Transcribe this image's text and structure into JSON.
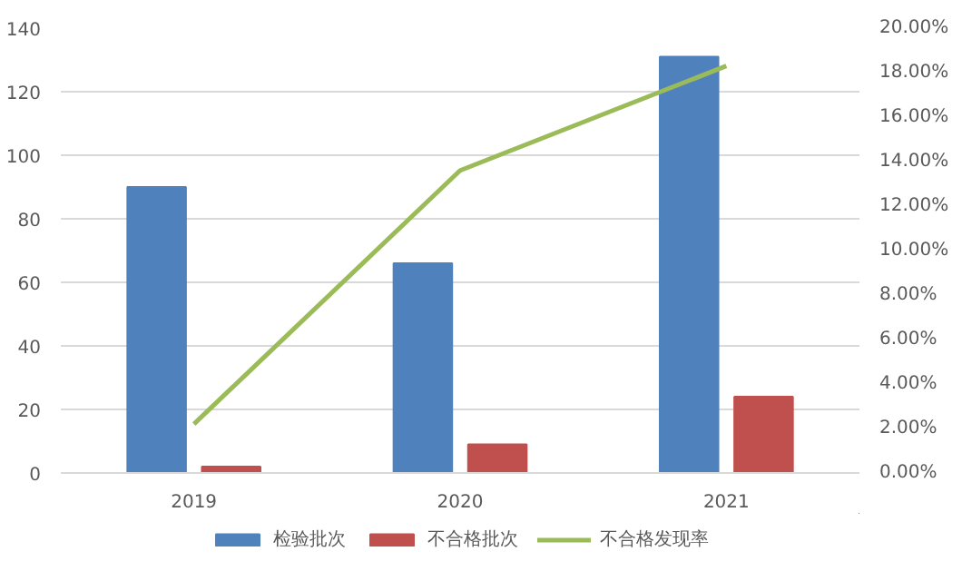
{
  "chart_data": {
    "type": "bar",
    "categories": [
      "2019",
      "2020",
      "2021"
    ],
    "series": [
      {
        "name": "检验批次",
        "color": "#4f81bd",
        "values": [
          90,
          66,
          131
        ]
      },
      {
        "name": "不合格批次",
        "color": "#c0504d",
        "values": [
          2,
          9,
          24
        ]
      },
      {
        "name": "不合格发现率",
        "color": "#9bbb59",
        "type": "line",
        "axis": "y2",
        "values": [
          2.2,
          13.6,
          18.3
        ]
      }
    ],
    "ylim": [
      0,
      140
    ],
    "yticks": [
      0,
      20,
      40,
      60,
      80,
      100,
      120,
      140
    ],
    "y2lim": [
      0,
      20
    ],
    "y2ticks": [
      {
        "value": 0,
        "label": "0.00%"
      },
      {
        "value": 2,
        "label": "2.00%"
      },
      {
        "value": 4,
        "label": "4.00%"
      },
      {
        "value": 6,
        "label": "6.00%"
      },
      {
        "value": 8,
        "label": "8.00%"
      },
      {
        "value": 10,
        "label": "10.00%"
      },
      {
        "value": 12,
        "label": "12.00%"
      },
      {
        "value": 14,
        "label": "14.00%"
      },
      {
        "value": 16,
        "label": "16.00%"
      },
      {
        "value": 18,
        "label": "18.00%"
      },
      {
        "value": 20,
        "label": "20.00%"
      }
    ],
    "grid": "y",
    "legend": "bottom",
    "marker": "none",
    "line_style": "solid"
  }
}
